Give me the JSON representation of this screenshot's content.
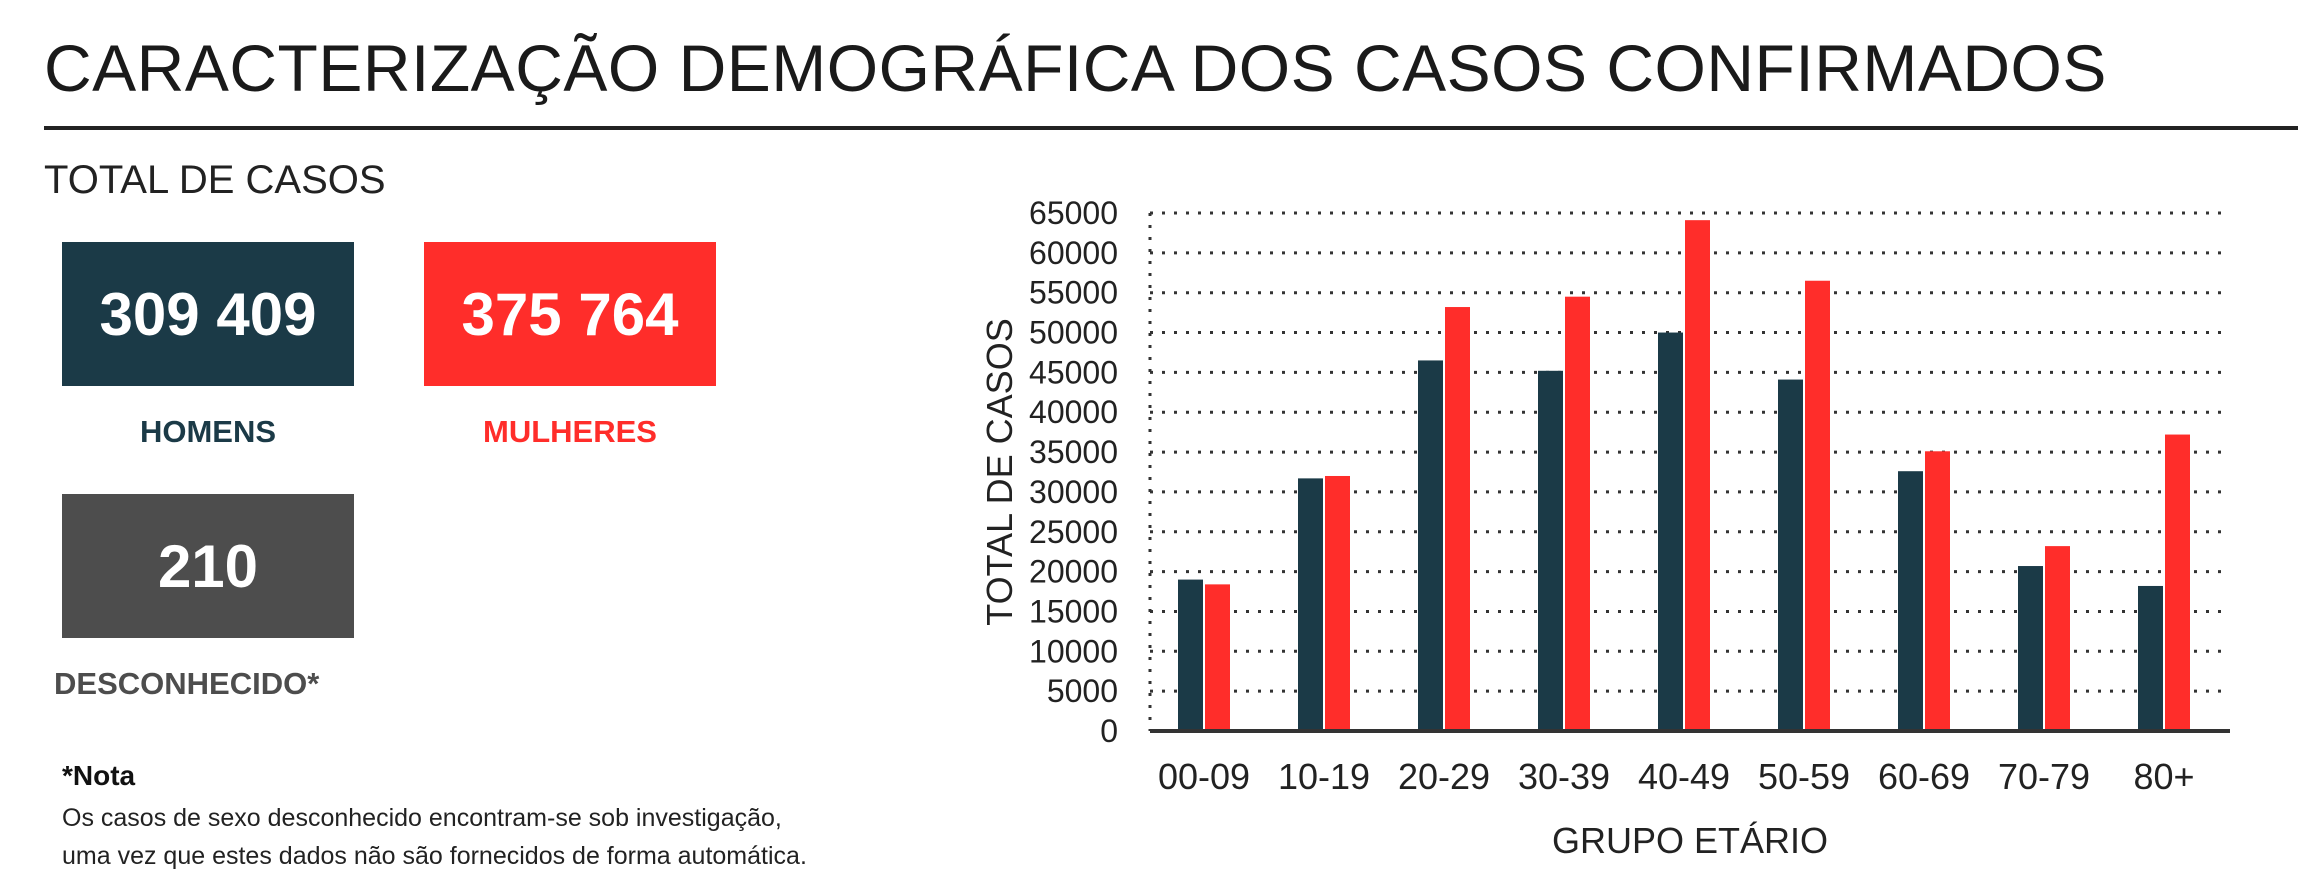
{
  "header": {
    "title": "CARACTERIZAÇÃO DEMOGRÁFICA DOS CASOS CONFIRMADOS"
  },
  "totals": {
    "section_title": "TOTAL DE CASOS",
    "men": {
      "value": "309 409",
      "label": "HOMENS",
      "color": "#1b3a47"
    },
    "women": {
      "value": "375 764",
      "label": "MULHERES",
      "color": "#ff2d2a"
    },
    "unknown": {
      "value": "210",
      "label": "DESCONHECIDO*",
      "color": "#4d4d4d"
    }
  },
  "note": {
    "title": "*Nota",
    "lines": [
      "Os casos de sexo desconhecido encontram-se sob investigação,",
      "uma vez que estes dados não são fornecidos de forma automática."
    ]
  },
  "chart_data": {
    "type": "bar",
    "categories": [
      "00-09",
      "10-19",
      "20-29",
      "30-39",
      "40-49",
      "50-59",
      "60-69",
      "70-79",
      "80+"
    ],
    "series": [
      {
        "values": [
          19000,
          31700,
          46500,
          45200,
          50000,
          44100,
          32600,
          20700,
          18200
        ],
        "color": "#1b3a47"
      },
      {
        "values": [
          18400,
          32000,
          53200,
          54500,
          64100,
          56500,
          35100,
          23200,
          37200
        ],
        "color": "#ff2d2a"
      }
    ],
    "xlabel": "GRUPO ETÁRIO",
    "ylabel": "TOTAL DE CASOS",
    "ylim": [
      0,
      65000
    ],
    "yticks": [
      "0",
      "5000",
      "10000",
      "15000",
      "20000",
      "25000",
      "30000",
      "35000",
      "40000",
      "45000",
      "50000",
      "55000",
      "60000",
      "65000"
    ],
    "grid": true
  }
}
